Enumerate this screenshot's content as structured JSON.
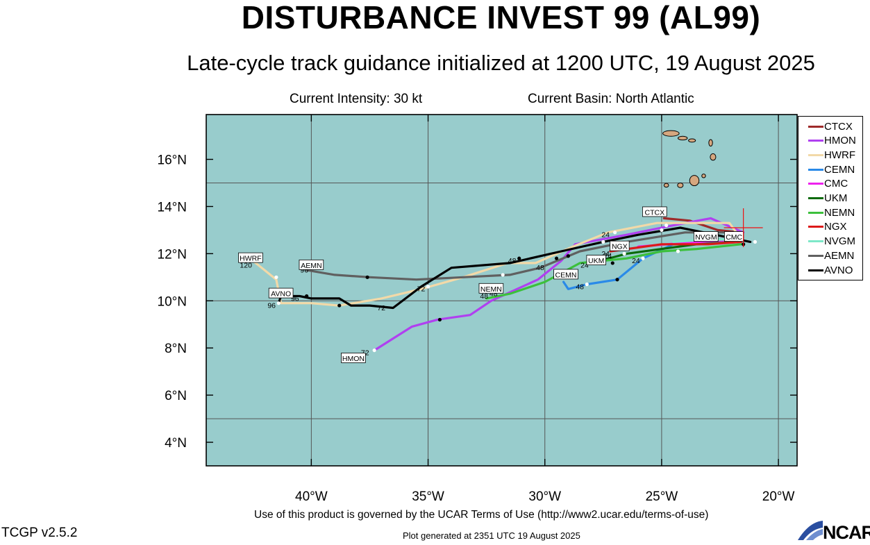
{
  "title": "DISTURBANCE INVEST 99 (AL99)",
  "subtitle": "Late-cycle track guidance initialized at 1200 UTC, 19 August 2025",
  "intensity_text": "Current Intensity: 30 kt",
  "basin_text": "Current Basin: North Atlantic",
  "terms_text": "Use of this product is governed by the UCAR Terms of Use (http://www2.ucar.edu/terms-of-use)",
  "generated_text": "Plot generated at 2351 UTC   19 August 2025",
  "version_text": "TCGP v2.5.2",
  "logo_text": "NCAR",
  "colors": {
    "ocean": "#98cccc",
    "land": "#d6a77f"
  },
  "chart_data": {
    "type": "map",
    "xlim": [
      -44.5,
      -19.2
    ],
    "ylim": [
      3.0,
      17.9
    ],
    "x_ticks": [
      -40,
      -35,
      -30,
      -25,
      -20
    ],
    "x_tick_labels": [
      "40°W",
      "35°W",
      "30°W",
      "25°W",
      "20°W"
    ],
    "y_ticks": [
      4,
      6,
      8,
      10,
      12,
      14,
      16
    ],
    "y_tick_labels": [
      "4°N",
      "6°N",
      "8°N",
      "10°N",
      "12°N",
      "14°N",
      "16°N"
    ],
    "grid_lon": [
      -40,
      -35,
      -30,
      -25,
      -20
    ],
    "grid_lat": [
      5,
      10,
      15
    ],
    "current_position": [
      -21.5,
      13.1
    ],
    "tracks": [
      {
        "name": "CTCX",
        "color": "#9e2a2a",
        "points": [
          [
            -24.9,
            13.5
          ],
          [
            -23.8,
            13.4
          ],
          [
            -22.6,
            13.0
          ],
          [
            -21.6,
            12.9
          ]
        ],
        "label": "CTCX",
        "label_pos": [
          -25.3,
          13.75
        ]
      },
      {
        "name": "HMON",
        "color": "#b040f0",
        "points": [
          [
            -21.5,
            12.9
          ],
          [
            -22.9,
            13.5
          ],
          [
            -24.5,
            13.2
          ],
          [
            -26.5,
            12.8
          ],
          [
            -28.7,
            12.4
          ],
          [
            -29.3,
            11.7
          ],
          [
            -30.3,
            10.9
          ],
          [
            -32.3,
            10.0
          ],
          [
            -33.2,
            9.4
          ],
          [
            -34.6,
            9.2
          ],
          [
            -35.7,
            8.9
          ],
          [
            -37.3,
            7.9
          ]
        ],
        "label": "HMON",
        "label_pos": [
          -38.2,
          7.55
        ],
        "markers": [
          [
            -27.0,
            12.9
          ],
          [
            -34.5,
            9.2
          ],
          [
            -37.3,
            7.9
          ]
        ],
        "hours": [
          {
            "t": "24",
            "at": [
              -27.4,
              12.7
            ]
          },
          {
            "t": "48",
            "at": [
              -32.2,
              10.2
            ]
          },
          {
            "t": "72",
            "at": [
              -37.7,
              7.7
            ]
          }
        ]
      },
      {
        "name": "HWRF",
        "color": "#f2d9a8",
        "points": [
          [
            -21.8,
            12.9
          ],
          [
            -22.1,
            13.3
          ],
          [
            -23.7,
            13.3
          ],
          [
            -25.2,
            13.3
          ],
          [
            -27.3,
            12.9
          ],
          [
            -28.8,
            12.3
          ],
          [
            -30.4,
            11.6
          ],
          [
            -31.6,
            11.6
          ],
          [
            -33.5,
            11.0
          ],
          [
            -35.3,
            10.5
          ],
          [
            -37.0,
            10.1
          ],
          [
            -38.8,
            9.8
          ],
          [
            -40.0,
            9.9
          ],
          [
            -41.3,
            9.9
          ],
          [
            -41.5,
            10.9
          ],
          [
            -42.5,
            11.7
          ]
        ],
        "label": "HWRF",
        "label_pos": [
          -42.6,
          11.8
        ],
        "markers": [
          [
            -24.8,
            13.2
          ],
          [
            -29.5,
            11.8
          ],
          [
            -35.0,
            10.6
          ],
          [
            -38.8,
            9.8
          ],
          [
            -41.5,
            11.0
          ]
        ],
        "hours": [
          {
            "t": "120",
            "at": [
              -42.8,
              11.4
            ]
          }
        ]
      },
      {
        "name": "CEMN",
        "color": "#2a8ae8",
        "points": [
          [
            -21.6,
            12.6
          ],
          [
            -23.0,
            12.6
          ],
          [
            -24.5,
            12.4
          ],
          [
            -25.8,
            11.8
          ],
          [
            -26.9,
            10.9
          ],
          [
            -28.2,
            10.7
          ],
          [
            -29.0,
            10.5
          ],
          [
            -29.2,
            10.8
          ]
        ],
        "label": "CEMN",
        "label_pos": [
          -29.1,
          11.1
        ],
        "markers": [
          [
            -25.8,
            11.8
          ],
          [
            -26.9,
            10.9
          ],
          [
            -28.2,
            10.7
          ]
        ],
        "hours": [
          {
            "t": "24",
            "at": [
              -26.1,
              11.6
            ]
          },
          {
            "t": "48",
            "at": [
              -28.5,
              10.5
            ]
          }
        ]
      },
      {
        "name": "CMC",
        "color": "#ee22ee",
        "points": [
          [
            -21.6,
            12.5
          ],
          [
            -23.5,
            12.5
          ],
          [
            -26.0,
            12.3
          ]
        ],
        "label": "CMC",
        "label_pos": [
          -21.9,
          12.7
        ]
      },
      {
        "name": "UKM",
        "color": "#0a6a0a",
        "points": [
          [
            -21.6,
            12.5
          ],
          [
            -23.5,
            12.4
          ],
          [
            -25.0,
            12.2
          ],
          [
            -26.5,
            12.0
          ],
          [
            -28.0,
            11.6
          ]
        ],
        "label": "UKM",
        "label_pos": [
          -27.8,
          11.7
        ],
        "markers": [
          [
            -26.6,
            12.0
          ]
        ],
        "hours": [
          {
            "t": "24",
            "at": [
              -28.3,
              11.4
            ]
          }
        ]
      },
      {
        "name": "NEMN",
        "color": "#3cc03c",
        "points": [
          [
            -21.6,
            12.4
          ],
          [
            -23.5,
            12.2
          ],
          [
            -25.0,
            12.1
          ],
          [
            -26.5,
            11.8
          ],
          [
            -28.5,
            11.6
          ],
          [
            -30.0,
            10.8
          ],
          [
            -31.5,
            10.3
          ],
          [
            -32.5,
            10.1
          ]
        ],
        "label": "NEMN",
        "label_pos": [
          -32.3,
          10.5
        ],
        "markers": [
          [
            -24.3,
            12.1
          ],
          [
            -27.1,
            11.6
          ]
        ],
        "hours": [
          {
            "t": "24",
            "at": [
              -27.3,
              11.8
            ]
          },
          {
            "t": "48",
            "at": [
              -32.6,
              10.1
            ]
          }
        ]
      },
      {
        "name": "NGX",
        "color": "#dd1a1a",
        "points": [
          [
            -21.6,
            12.5
          ],
          [
            -23.0,
            12.4
          ],
          [
            -25.0,
            12.4
          ],
          [
            -27.2,
            12.1
          ]
        ],
        "label": "NGX",
        "label_pos": [
          -26.8,
          12.3
        ],
        "hours": [
          {
            "t": "24",
            "at": [
              -27.4,
              11.9
            ]
          }
        ]
      },
      {
        "name": "NVGM",
        "color": "#7ee8c8",
        "points": [
          [
            -21.6,
            12.6
          ],
          [
            -23.0,
            12.6
          ],
          [
            -24.5,
            12.5
          ]
        ],
        "label": "NVGM",
        "label_pos": [
          -23.1,
          12.7
        ]
      },
      {
        "name": "AEMN",
        "color": "#606060",
        "points": [
          [
            -21.6,
            12.9
          ],
          [
            -24.0,
            12.9
          ],
          [
            -26.5,
            12.5
          ],
          [
            -28.5,
            12.1
          ],
          [
            -30.2,
            11.4
          ],
          [
            -31.5,
            11.1
          ],
          [
            -33.5,
            11.0
          ],
          [
            -35.5,
            10.9
          ],
          [
            -37.5,
            11.0
          ],
          [
            -39.0,
            11.1
          ],
          [
            -40.2,
            11.3
          ]
        ],
        "label": "AEMN",
        "label_pos": [
          -40.0,
          11.5
        ],
        "markers": [
          [
            -25.0,
            13.0
          ],
          [
            -29.0,
            11.9
          ],
          [
            -31.8,
            11.1
          ],
          [
            -37.6,
            11.0
          ]
        ],
        "hours": [
          {
            "t": "48",
            "at": [
              -30.2,
              11.3
            ]
          },
          {
            "t": "96",
            "at": [
              -40.3,
              11.2
            ]
          }
        ]
      },
      {
        "name": "AVNO",
        "color": "#000000",
        "points": [
          [
            -21.2,
            12.5
          ],
          [
            -22.7,
            12.8
          ],
          [
            -24.2,
            13.1
          ],
          [
            -26.0,
            12.8
          ],
          [
            -27.5,
            12.5
          ],
          [
            -29.3,
            12.1
          ],
          [
            -31.5,
            11.6
          ],
          [
            -34.0,
            11.4
          ],
          [
            -35.3,
            10.6
          ],
          [
            -36.5,
            9.7
          ],
          [
            -37.5,
            9.8
          ],
          [
            -38.3,
            9.8
          ],
          [
            -38.8,
            10.1
          ],
          [
            -40.0,
            10.1
          ],
          [
            -40.5,
            10.2
          ],
          [
            -41.3,
            10.2
          ],
          [
            -41.4,
            9.9
          ]
        ],
        "label": "AVNO",
        "label_pos": [
          -41.3,
          10.3
        ],
        "markers": [
          [
            -21.0,
            12.5
          ],
          [
            -21.5,
            12.4
          ],
          [
            -27.5,
            12.5
          ],
          [
            -31.1,
            11.8
          ],
          [
            -35.0,
            10.6
          ],
          [
            -40.2,
            10.2
          ],
          [
            -41.4,
            9.9
          ]
        ],
        "hours": [
          {
            "t": "48",
            "at": [
              -31.4,
              11.6
            ]
          },
          {
            "t": "72",
            "at": [
              -35.3,
              10.4
            ]
          },
          {
            "t": "72",
            "at": [
              -37.0,
              9.6
            ]
          },
          {
            "t": "96",
            "at": [
              -40.7,
              10.0
            ]
          },
          {
            "t": "96",
            "at": [
              -41.7,
              9.7
            ]
          }
        ]
      }
    ]
  }
}
